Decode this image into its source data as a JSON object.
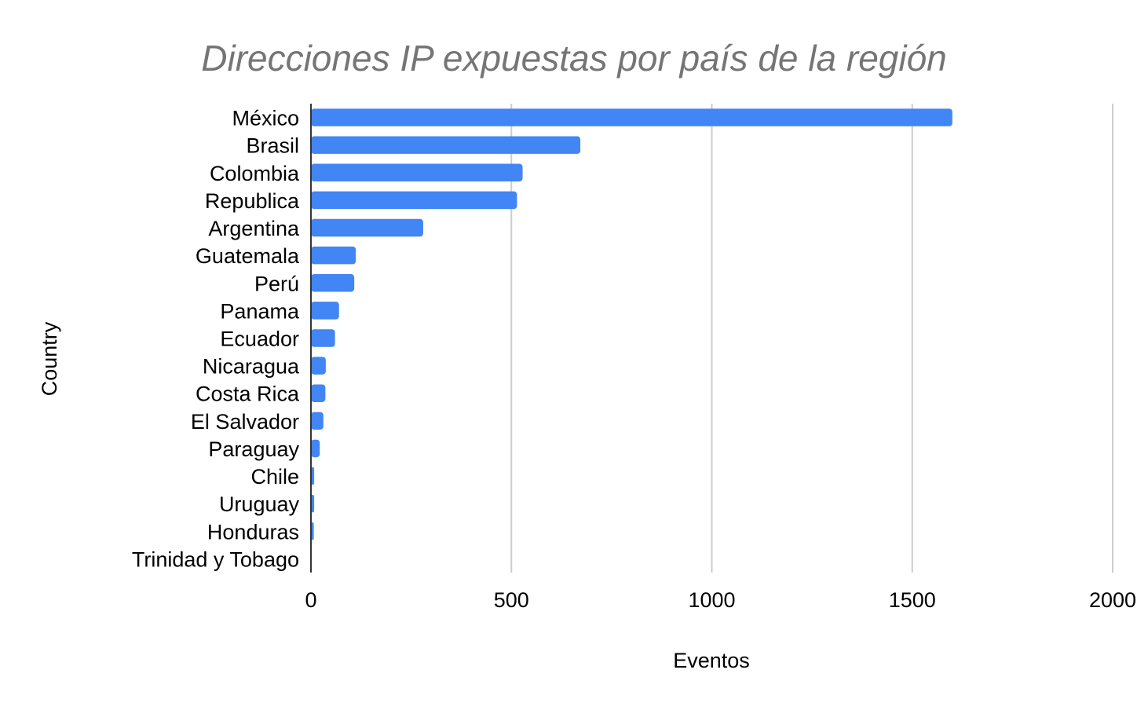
{
  "chart_data": {
    "type": "bar",
    "orientation": "horizontal",
    "title": "Direcciones IP expuestas por país de la región",
    "xlabel": "Eventos",
    "ylabel": "Country",
    "xlim": [
      0,
      2000
    ],
    "xticks": [
      "0",
      "500",
      "1000",
      "1500",
      "2000"
    ],
    "grid": true,
    "legend": "none",
    "bar_color": "#4285f4",
    "categories": [
      "México",
      "Brasil",
      "Colombia",
      "Republica",
      "Argentina",
      "Guatemala",
      "Perú",
      "Panama",
      "Ecuador",
      "Nicaragua",
      "Costa Rica",
      "El Salvador",
      "Paraguay",
      "Chile",
      "Uruguay",
      "Honduras",
      "Trinidad y Tobago"
    ],
    "values": [
      1600,
      672,
      528,
      514,
      280,
      112,
      108,
      70,
      60,
      37,
      36,
      31,
      22,
      8,
      8,
      7,
      1
    ]
  }
}
